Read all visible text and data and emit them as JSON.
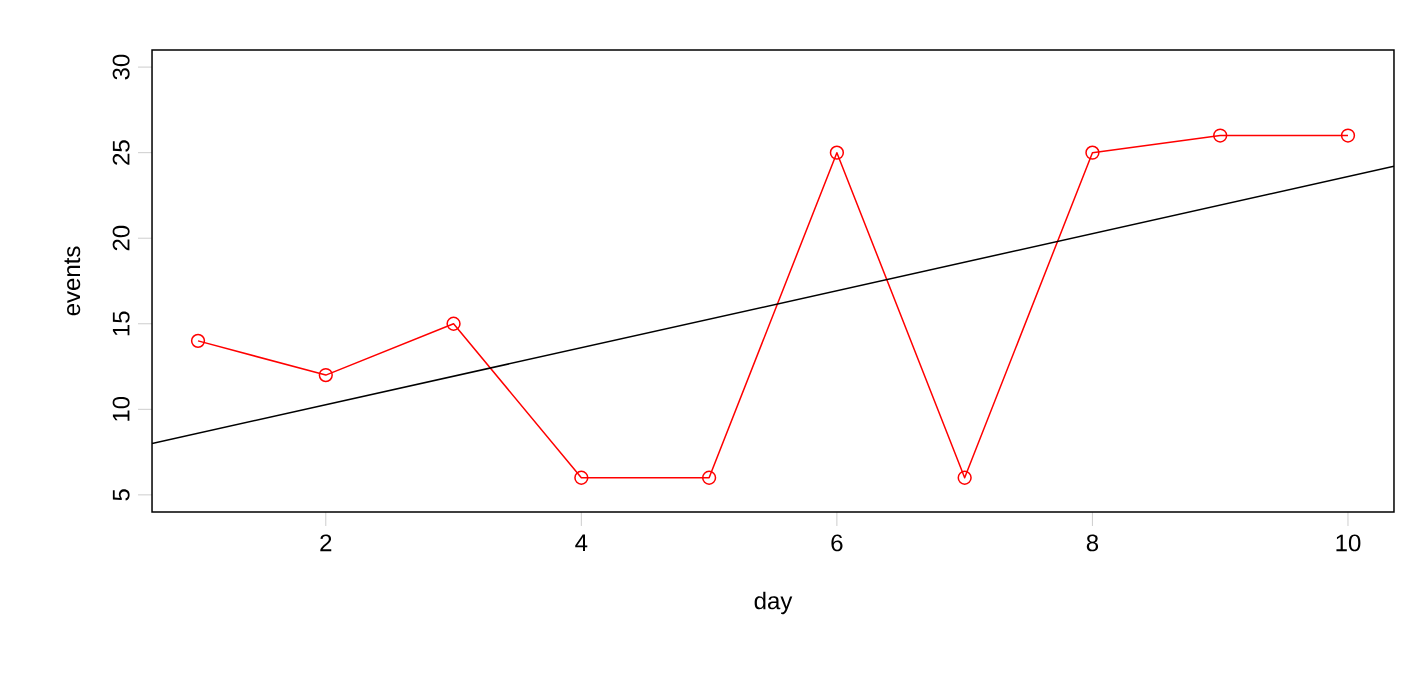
{
  "chart_data": {
    "type": "line",
    "xlabel": "day",
    "ylabel": "events",
    "xlim": [
      0.64,
      10.36
    ],
    "ylim": [
      4,
      31
    ],
    "xticks": [
      2,
      4,
      6,
      8,
      10
    ],
    "yticks": [
      5,
      10,
      15,
      20,
      25,
      30
    ],
    "series": [
      {
        "color": "#ff0000",
        "marker": "circle",
        "x": [
          1,
          2,
          3,
          4,
          5,
          6,
          7,
          8,
          9,
          10
        ],
        "values": [
          14,
          12,
          15,
          6,
          6,
          25,
          6,
          25,
          26,
          26
        ]
      },
      {
        "type": "line",
        "color": "#000000",
        "marker": "none",
        "x": [
          0.64,
          10.36
        ],
        "values": [
          8.0,
          24.2
        ]
      }
    ]
  }
}
